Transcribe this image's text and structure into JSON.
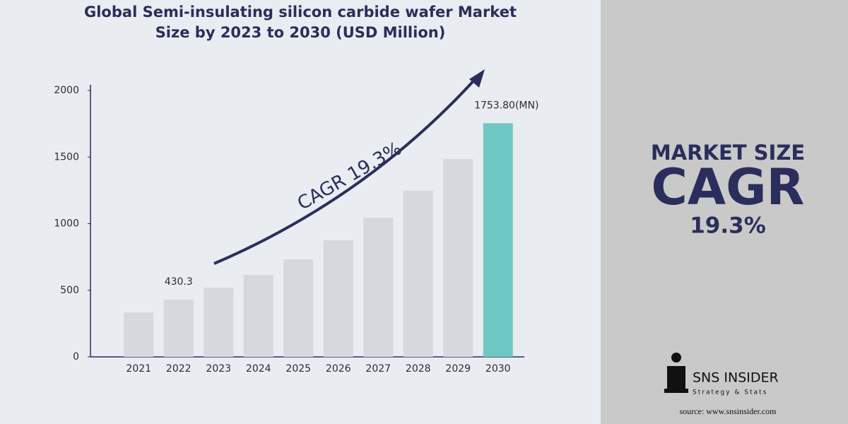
{
  "chart_data": {
    "type": "bar",
    "title": [
      "Global Semi-insulating silicon carbide wafer Market",
      "Size by 2023 to 2030 (USD Million)"
    ],
    "categories": [
      "2021",
      "2022",
      "2023",
      "2024",
      "2025",
      "2026",
      "2027",
      "2028",
      "2029",
      "2030"
    ],
    "values": [
      334,
      430.3,
      520,
      615,
      732,
      875,
      1045,
      1247,
      1485,
      1753.8
    ],
    "value_labels": [
      null,
      "430.3",
      null,
      null,
      null,
      null,
      null,
      null,
      null,
      "1753.80(MN)"
    ],
    "colors": [
      "#d5d9de",
      "#d5d9de",
      "#d5d9de",
      "#d5d9de",
      "#d5d9de",
      "#d5d9de",
      "#d5d9de",
      "#d5d9de",
      "#d5d9de",
      "#6ec8c4"
    ],
    "ylim": [
      0,
      2000
    ],
    "yticks": [
      0,
      500,
      1000,
      1500,
      2000
    ],
    "grid": false,
    "annotation": "CAGR 19.3%"
  },
  "side_panel": {
    "heading": "MARKET SIZE",
    "big": "CAGR",
    "value": "19.3%",
    "brand": "SNS INSIDER",
    "tagline": "Strategy & Stats",
    "source": "source: www.snsinsider.com"
  }
}
